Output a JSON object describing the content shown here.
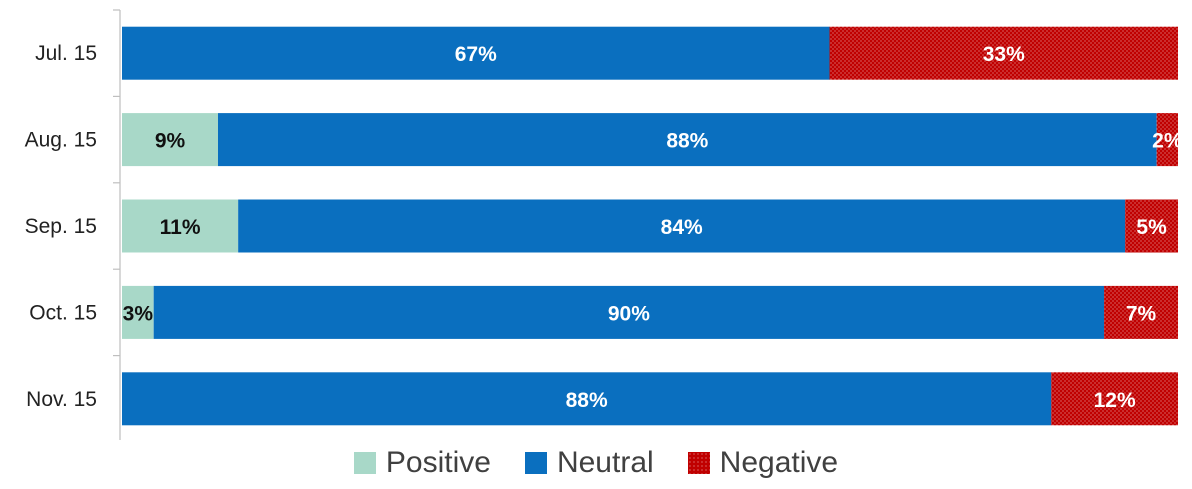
{
  "chart_data": {
    "type": "bar",
    "orientation": "horizontal",
    "stacked": "percent",
    "categories": [
      "Jul. 15",
      "Aug. 15",
      "Sep. 15",
      "Oct. 15",
      "Nov. 15"
    ],
    "series": [
      {
        "name": "Positive",
        "values": [
          0,
          9,
          11,
          3,
          0
        ],
        "labels": [
          "",
          "9%",
          "11%",
          "3%",
          ""
        ],
        "color": "#a8d8c8",
        "pattern": "solid"
      },
      {
        "name": "Neutral",
        "values": [
          67,
          88,
          84,
          90,
          88
        ],
        "labels": [
          "67%",
          "88%",
          "84%",
          "90%",
          "88%"
        ],
        "color": "#0a6fbf",
        "pattern": "solid"
      },
      {
        "name": "Negative",
        "values": [
          33,
          2,
          5,
          7,
          12
        ],
        "labels": [
          "33%",
          "2%",
          "5%",
          "7%",
          "12%"
        ],
        "color": "#c00000",
        "pattern": "dotted"
      }
    ],
    "title": "",
    "xlabel": "",
    "ylabel": "",
    "xlim": [
      0,
      100
    ],
    "grid": false,
    "legend": "bottom"
  }
}
